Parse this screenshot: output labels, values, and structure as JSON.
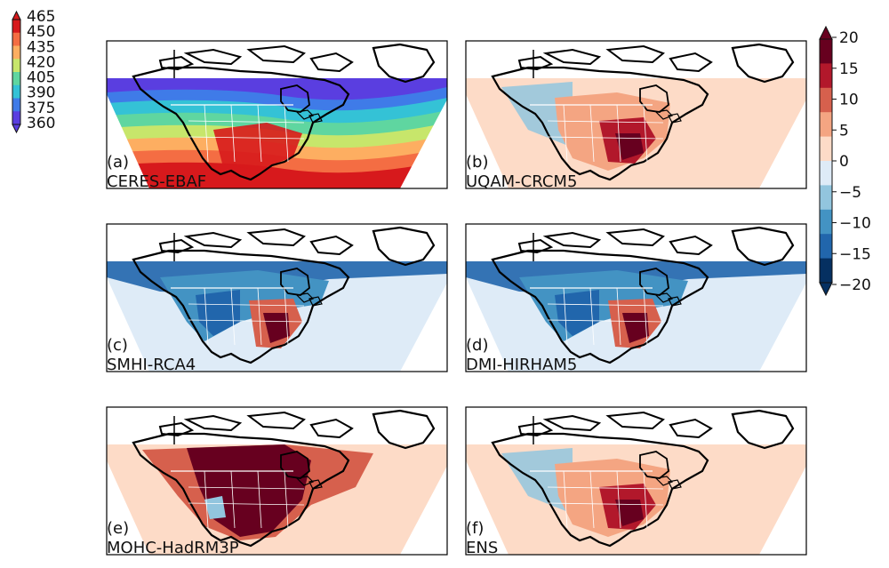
{
  "figure": {
    "panels": [
      {
        "id": "a",
        "tag": "(a)",
        "model": "CERES-EBAF",
        "style": "absolute"
      },
      {
        "id": "b",
        "tag": "(b)",
        "model": "UQAM-CRCM5",
        "style": "mild"
      },
      {
        "id": "c",
        "tag": "(c)",
        "model": "SMHI-RCA4",
        "style": "cold"
      },
      {
        "id": "d",
        "tag": "(d)",
        "model": "DMI-HIRHAM5",
        "style": "cold"
      },
      {
        "id": "e",
        "tag": "(e)",
        "model": "MOHC-HadRM3P",
        "style": "warm"
      },
      {
        "id": "f",
        "tag": "(f)",
        "model": "ENS",
        "style": "mild"
      }
    ]
  },
  "colorbar_absolute": {
    "ticks": [
      "465",
      "450",
      "435",
      "420",
      "405",
      "390",
      "375",
      "360"
    ],
    "colors": [
      "#d7191c",
      "#f46d43",
      "#fdae61",
      "#c7e66b",
      "#5fd6a0",
      "#34c2d6",
      "#3f7be8",
      "#5a3ee0"
    ]
  },
  "colorbar_difference": {
    "ticks": [
      "20",
      "15",
      "10",
      "5",
      "0",
      "−5",
      "−10",
      "−15",
      "−20"
    ],
    "colors": [
      "#67001f",
      "#b2182b",
      "#d6604d",
      "#f4a582",
      "#fddbc7",
      "#deebf7",
      "#92c5de",
      "#4393c3",
      "#2166ac",
      "#053061"
    ]
  }
}
